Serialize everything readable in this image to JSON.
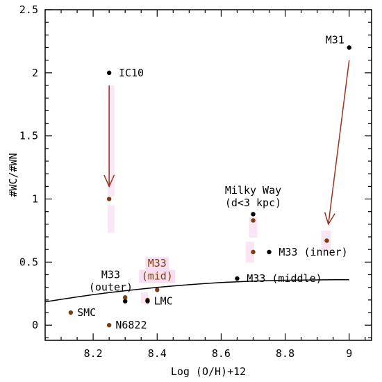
{
  "chart_data": {
    "type": "scatter",
    "xlabel": "Log (O/H)+12",
    "ylabel": "#WC/#WN",
    "xlim": [
      8.05,
      9.07
    ],
    "ylim": [
      -0.12,
      2.5
    ],
    "xticks": [
      "8.2",
      "8.4",
      "8.6",
      "8.8",
      "9"
    ],
    "yticks": [
      "0",
      "0.5",
      "1",
      "1.5",
      "2",
      "2.5"
    ],
    "grid": false,
    "colors": {
      "black": "#000000",
      "brown": "#7b3d0f",
      "arrow": "#a0301e",
      "highlight": "#f7dff0"
    },
    "points": [
      {
        "x": 8.25,
        "y": 2.0,
        "color": "black"
      },
      {
        "x": 8.25,
        "y": 1.0,
        "color": "brown"
      },
      {
        "x": 9.0,
        "y": 2.2,
        "color": "black"
      },
      {
        "x": 8.93,
        "y": 0.67,
        "color": "brown"
      },
      {
        "x": 8.7,
        "y": 0.88,
        "color": "black"
      },
      {
        "x": 8.7,
        "y": 0.83,
        "color": "brown"
      },
      {
        "x": 8.7,
        "y": 0.58,
        "color": "brown"
      },
      {
        "x": 8.75,
        "y": 0.58,
        "color": "black"
      },
      {
        "x": 8.65,
        "y": 0.37,
        "color": "black"
      },
      {
        "x": 8.4,
        "y": 0.28,
        "color": "brown"
      },
      {
        "x": 8.3,
        "y": 0.22,
        "color": "brown"
      },
      {
        "x": 8.3,
        "y": 0.19,
        "color": "black"
      },
      {
        "x": 8.37,
        "y": 0.2,
        "color": "brown"
      },
      {
        "x": 8.37,
        "y": 0.19,
        "color": "black"
      },
      {
        "x": 8.13,
        "y": 0.1,
        "color": "brown"
      },
      {
        "x": 8.25,
        "y": 0.0,
        "color": "brown"
      }
    ],
    "curve": {
      "x": [
        8.05,
        8.1,
        8.15,
        8.2,
        8.25,
        8.3,
        8.35,
        8.4,
        8.45,
        8.5,
        8.55,
        8.6,
        8.65,
        8.7,
        8.75,
        8.8,
        8.85,
        8.9,
        8.95,
        9.0
      ],
      "y": [
        0.185,
        0.205,
        0.224,
        0.242,
        0.258,
        0.273,
        0.287,
        0.3,
        0.311,
        0.321,
        0.33,
        0.338,
        0.344,
        0.349,
        0.353,
        0.356,
        0.358,
        0.359,
        0.36,
        0.36
      ]
    },
    "arrows": [
      {
        "from": [
          8.25,
          1.9
        ],
        "to": [
          8.25,
          1.1
        ]
      },
      {
        "from": [
          9.0,
          2.1
        ],
        "to": [
          8.935,
          0.8
        ]
      }
    ],
    "annotations": [
      {
        "text": "IC10",
        "x": 8.28,
        "y": 2.0,
        "color": "black"
      },
      {
        "text": "M31",
        "x": 8.985,
        "y": 2.26,
        "color": "black",
        "anchor": "end"
      },
      {
        "text": "Milky Way",
        "x": 8.7,
        "y": 1.07,
        "color": "black",
        "anchor": "middle"
      },
      {
        "text": "(d<3 kpc)",
        "x": 8.7,
        "y": 0.97,
        "color": "black",
        "anchor": "middle"
      },
      {
        "text": "M33 (inner)",
        "x": 8.78,
        "y": 0.58,
        "color": "black"
      },
      {
        "text": "M33 (middle)",
        "x": 8.68,
        "y": 0.37,
        "color": "black"
      },
      {
        "text": "M33",
        "x": 8.4,
        "y": 0.49,
        "color": "brown",
        "anchor": "middle",
        "highlight": true
      },
      {
        "text": "(mid)",
        "x": 8.4,
        "y": 0.39,
        "color": "brown",
        "anchor": "middle",
        "highlight": true
      },
      {
        "text": "M33",
        "x": 8.255,
        "y": 0.4,
        "color": "black",
        "anchor": "middle"
      },
      {
        "text": "(outer)",
        "x": 8.255,
        "y": 0.3,
        "color": "black",
        "anchor": "middle"
      },
      {
        "text": "LMC",
        "x": 8.39,
        "y": 0.19,
        "color": "black"
      },
      {
        "text": "SMC",
        "x": 8.15,
        "y": 0.1,
        "color": "black"
      },
      {
        "text": "N6822",
        "x": 8.27,
        "y": 0.0,
        "color": "black"
      }
    ]
  }
}
